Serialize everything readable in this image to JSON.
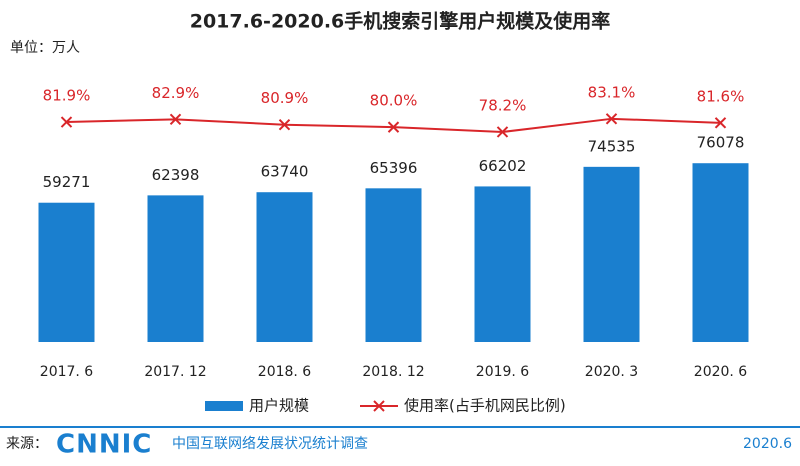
{
  "chart_data": {
    "type": "bar-line",
    "title": "2017.6-2020.6手机搜索引擎用户规模及使用率",
    "unit_label": "单位：万人",
    "categories": [
      "2017. 6",
      "2017. 12",
      "2018. 6",
      "2018. 12",
      "2019. 6",
      "2020. 3",
      "2020. 6"
    ],
    "series": [
      {
        "name": "用户规模",
        "type": "bar",
        "color": "#1a7fcf",
        "values": [
          59271,
          62398,
          63740,
          65396,
          66202,
          74535,
          76078
        ]
      },
      {
        "name": "使用率(占手机网民比例)",
        "type": "line",
        "axis": "y2",
        "color": "#d9262a",
        "values": [
          81.9,
          82.9,
          80.9,
          80.0,
          78.2,
          83.1,
          81.6
        ],
        "value_labels": [
          "81.9%",
          "82.9%",
          "80.9%",
          "80.0%",
          "78.2%",
          "83.1%",
          "81.6%"
        ]
      }
    ],
    "ylim": [
      0,
      120000
    ],
    "y2lim": [
      0,
      105
    ],
    "footer": {
      "source_label": "来源：",
      "org": "CNNIC",
      "survey": "中国互联网络发展状况统计调查",
      "date": "2020.6"
    }
  }
}
